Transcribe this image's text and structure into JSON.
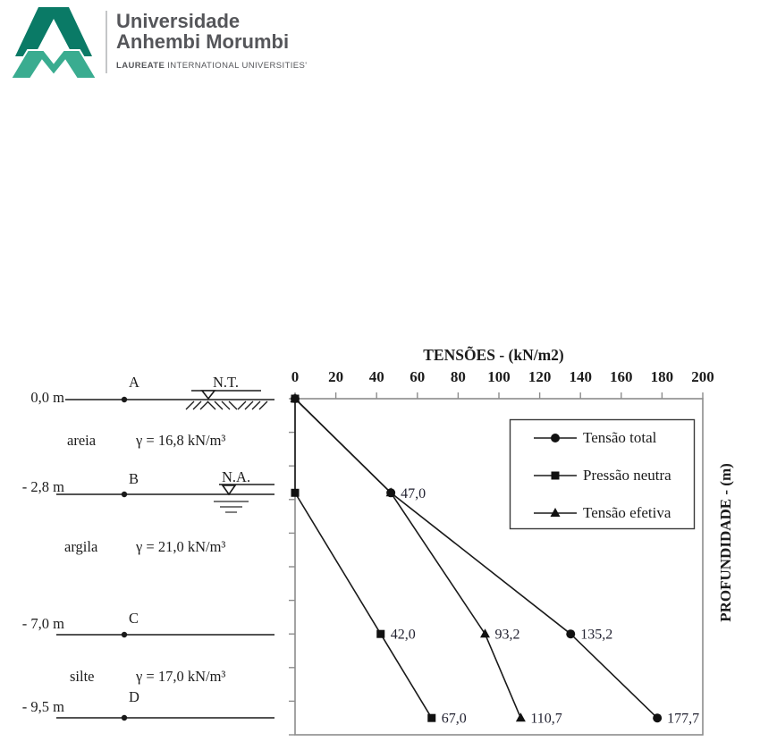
{
  "logo": {
    "line1": "Universidade",
    "line2": "Anhembi Morumbi",
    "sub_bold": "LAUREATE",
    "sub_rest": " INTERNATIONAL UNIVERSITIES'",
    "colors": {
      "a_mark": "#0a7a66",
      "m_mark": "#3aac90",
      "text": "#55565a"
    }
  },
  "profile": {
    "surface_label": "N.T.",
    "water_label": "N.A.",
    "rows": [
      {
        "depth": "0,0 m",
        "point": "A"
      },
      {
        "depth": "- 2,8 m",
        "point": "B"
      },
      {
        "depth": "- 7,0 m",
        "point": "C"
      },
      {
        "depth": "- 9,5 m",
        "point": "D"
      }
    ],
    "layers": [
      {
        "name": "areia",
        "gamma": "γ = 16,8 kN/m³"
      },
      {
        "name": "argila",
        "gamma": "γ = 21,0 kN/m³"
      },
      {
        "name": "silte",
        "gamma": "γ = 17,0 kN/m³"
      }
    ]
  },
  "chart_data": {
    "type": "line",
    "title": "TENSÕES - (kN/m2)",
    "ylabel": "PROFUNDIDADE - (m)",
    "xlabel": "",
    "xlim": [
      0,
      200
    ],
    "x_ticks": [
      0,
      20,
      40,
      60,
      80,
      100,
      120,
      140,
      160,
      180,
      200
    ],
    "depth_lim": [
      0,
      10
    ],
    "depth_tick_step_m": 1,
    "grid": false,
    "legend_position": "upper right",
    "series": [
      {
        "name": "Tensão total",
        "marker": "circle",
        "points": [
          {
            "stress": 0,
            "depth": 0
          },
          {
            "stress": 47.0,
            "depth": 2.8,
            "label": "47,0"
          },
          {
            "stress": 135.2,
            "depth": 7.0,
            "label": "135,2"
          },
          {
            "stress": 177.7,
            "depth": 9.5,
            "label": "177,7"
          }
        ]
      },
      {
        "name": "Pressão neutra",
        "marker": "square",
        "points": [
          {
            "stress": 0,
            "depth": 0
          },
          {
            "stress": 0,
            "depth": 2.8
          },
          {
            "stress": 42.0,
            "depth": 7.0,
            "label": "42,0"
          },
          {
            "stress": 67.0,
            "depth": 9.5,
            "label": "67,0"
          }
        ]
      },
      {
        "name": "Tensão efetiva",
        "marker": "triangle",
        "points": [
          {
            "stress": 0,
            "depth": 0
          },
          {
            "stress": 47.0,
            "depth": 2.8
          },
          {
            "stress": 93.2,
            "depth": 7.0,
            "label": "93,2"
          },
          {
            "stress": 110.7,
            "depth": 9.5,
            "label": "110,7"
          }
        ]
      }
    ]
  }
}
